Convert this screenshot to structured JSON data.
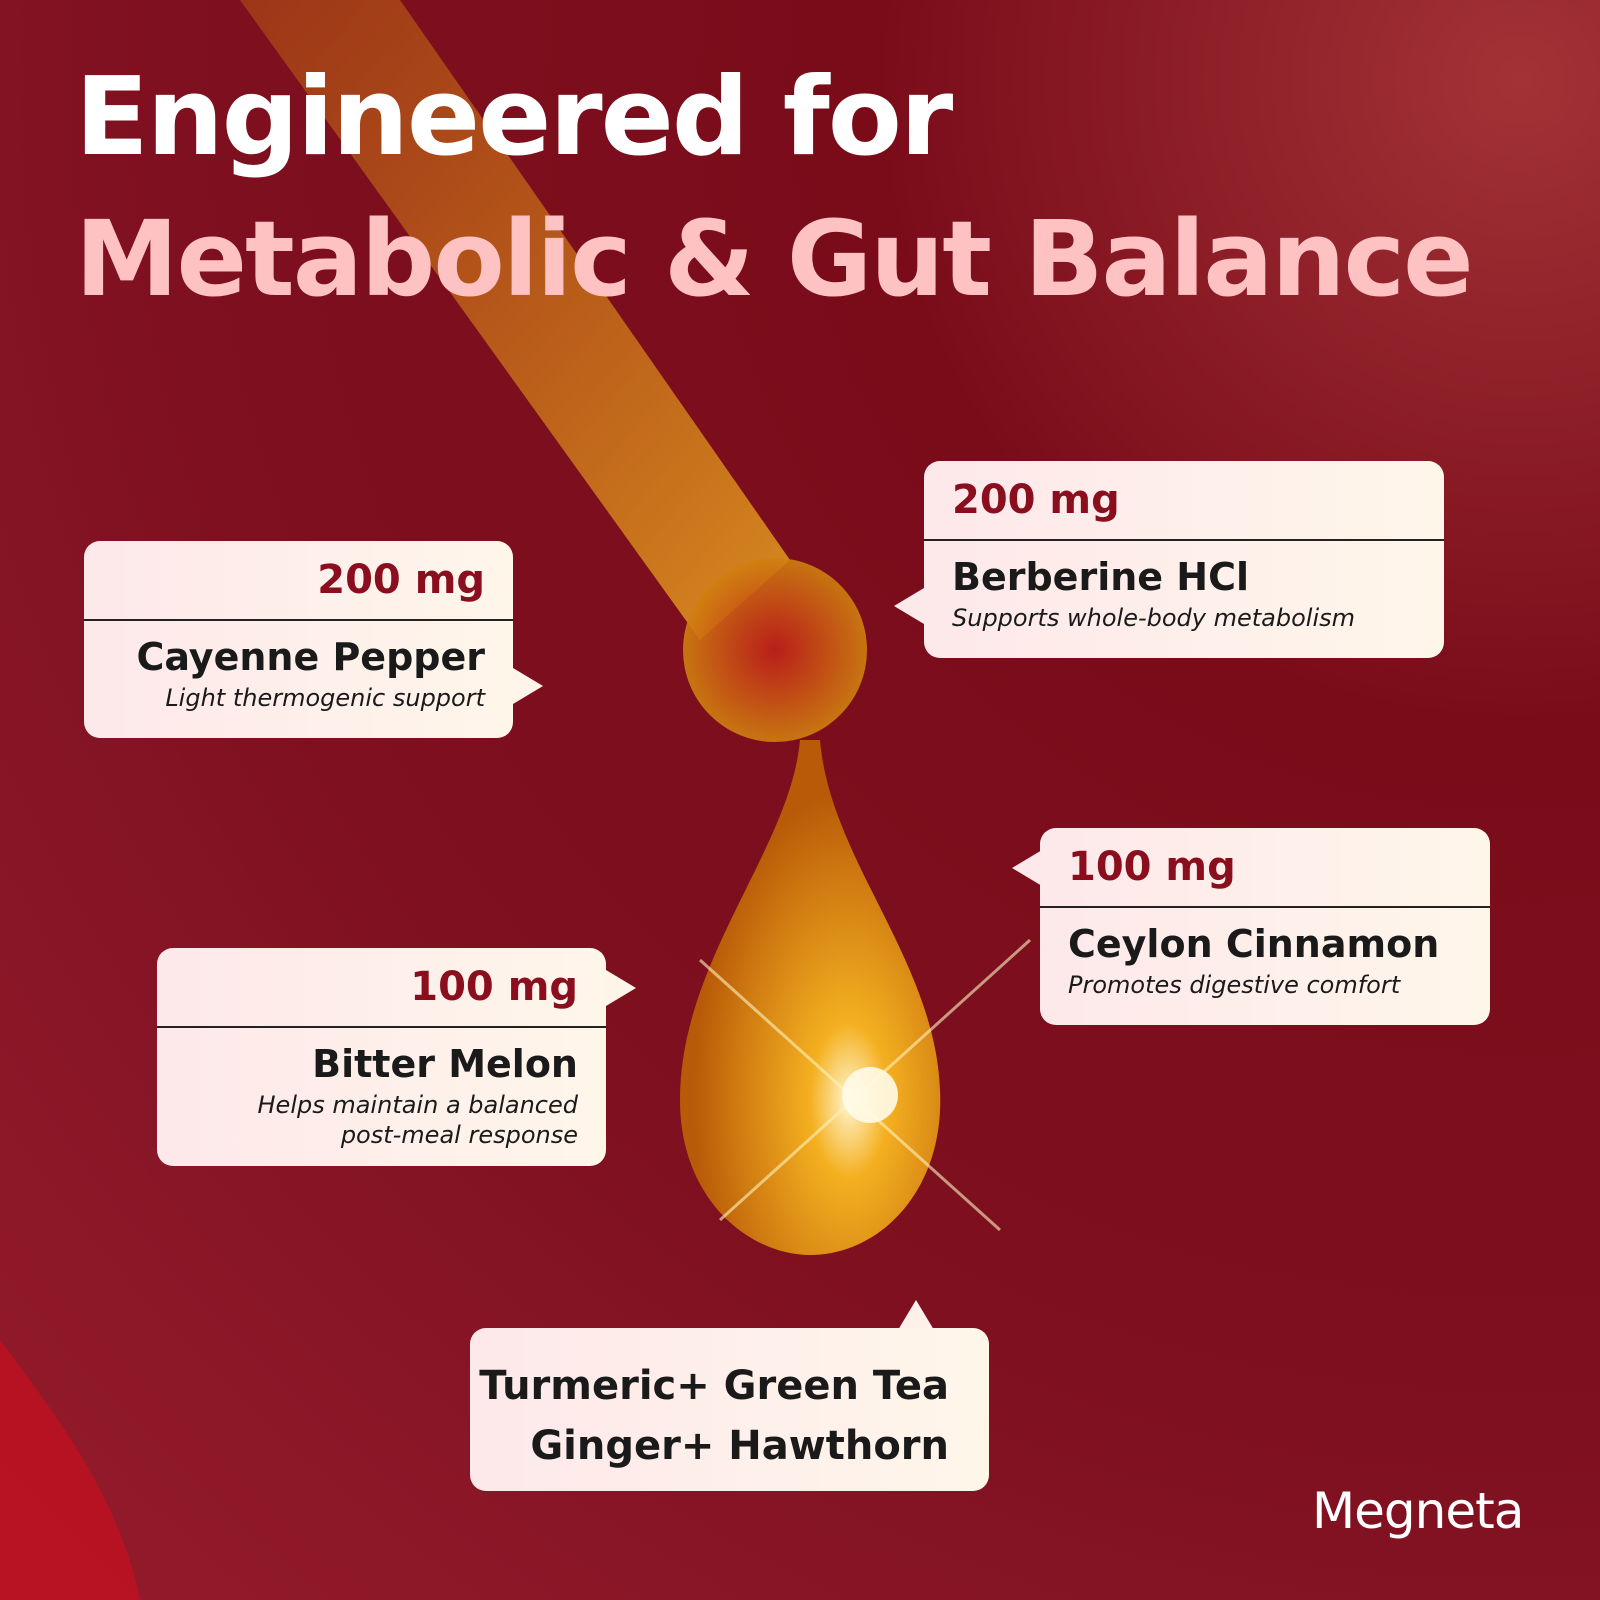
{
  "header": {
    "line1": "Engineered for",
    "line2": "Metabolic & Gut Balance"
  },
  "cards": [
    {
      "amount": "200 mg",
      "name": "Cayenne Pepper",
      "description": [
        "Light thermogenic support"
      ]
    },
    {
      "amount": "200 mg",
      "name": "Berberine HCl",
      "description": [
        "Supports whole-body metabolism"
      ]
    },
    {
      "amount": "100 mg",
      "name": "Ceylon Cinnamon",
      "description": [
        "Promotes digestive comfort"
      ]
    },
    {
      "amount": "100 mg",
      "name": "Bitter Melon",
      "description": [
        "Helps maintain a balanced",
        "post-meal response"
      ]
    }
  ],
  "blend": {
    "lines": [
      "Turmeric+ Green Tea",
      "Ginger+ Hawthorn"
    ]
  },
  "brand": {
    "logo": "Megneta"
  }
}
